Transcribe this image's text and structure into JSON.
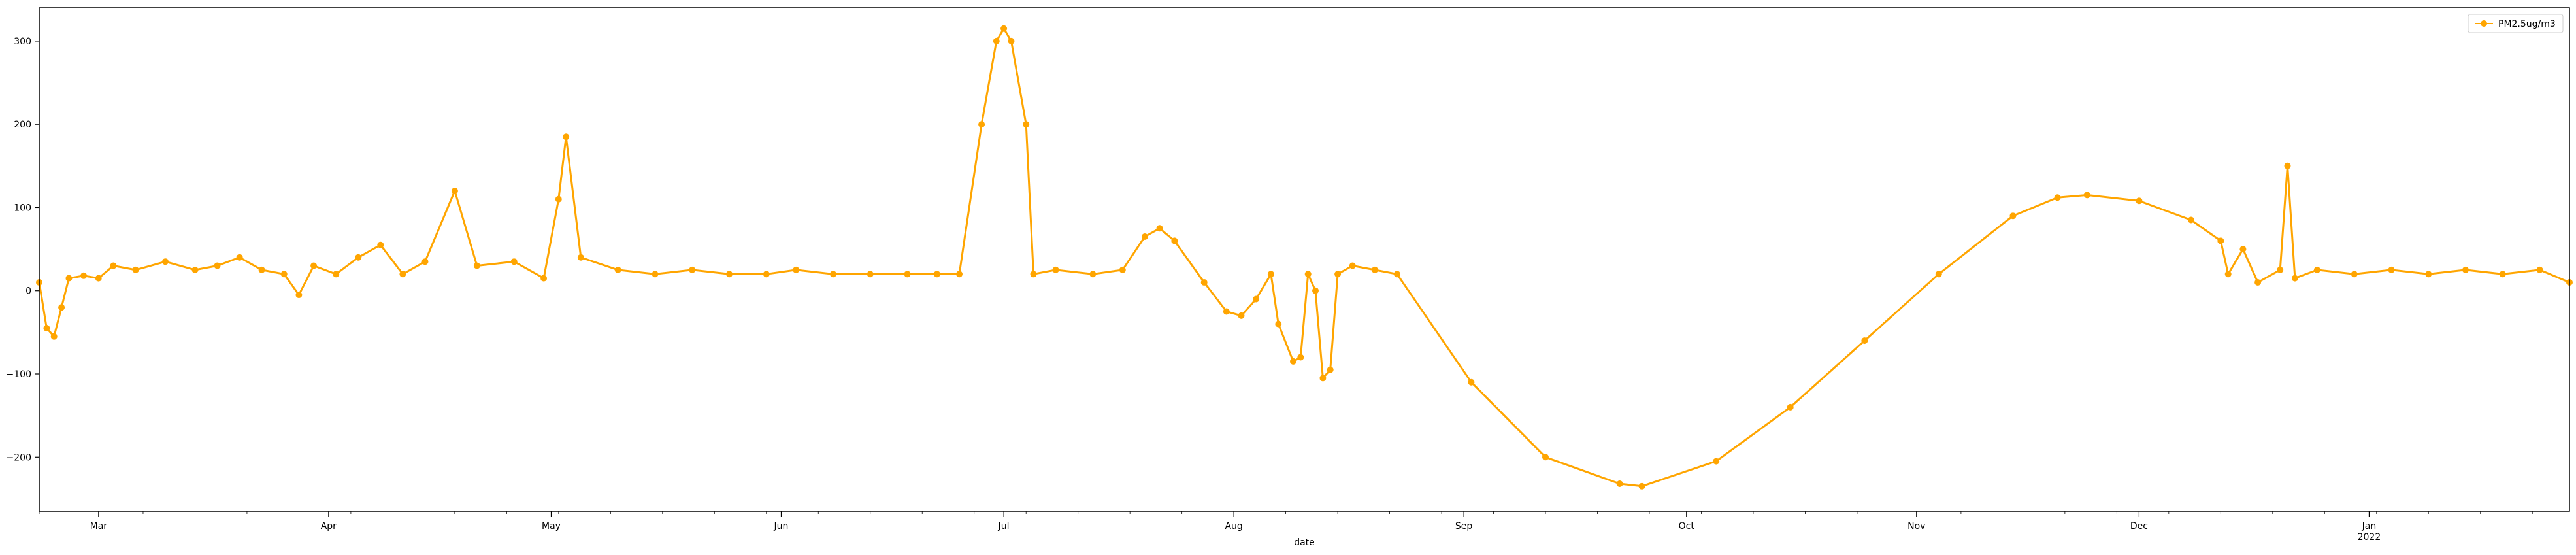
{
  "chart_data": {
    "type": "line",
    "title": "",
    "xlabel": "date",
    "ylabel": "",
    "x_type": "date",
    "xlim": [
      "2021-02-21",
      "2022-01-28"
    ],
    "ylim": [
      -265,
      340
    ],
    "y_ticks": [
      -200,
      -100,
      0,
      100,
      200,
      300
    ],
    "x_ticks": [
      {
        "date": "2021-03-01",
        "label": "Mar",
        "sublabel": ""
      },
      {
        "date": "2021-04-01",
        "label": "Apr",
        "sublabel": ""
      },
      {
        "date": "2021-05-01",
        "label": "May",
        "sublabel": ""
      },
      {
        "date": "2021-06-01",
        "label": "Jun",
        "sublabel": ""
      },
      {
        "date": "2021-07-01",
        "label": "Jul",
        "sublabel": ""
      },
      {
        "date": "2021-08-01",
        "label": "Aug",
        "sublabel": ""
      },
      {
        "date": "2021-09-01",
        "label": "Sep",
        "sublabel": ""
      },
      {
        "date": "2021-10-01",
        "label": "Oct",
        "sublabel": ""
      },
      {
        "date": "2021-11-01",
        "label": "Nov",
        "sublabel": ""
      },
      {
        "date": "2021-12-01",
        "label": "Dec",
        "sublabel": ""
      },
      {
        "date": "2022-01-01",
        "label": "Jan",
        "sublabel": "2022"
      }
    ],
    "grid": false,
    "legend": {
      "position": "top-right"
    },
    "series": [
      {
        "name": "PM2.5ug/m3",
        "color": "#FFA500",
        "marker": "circle",
        "points": [
          [
            "2021-02-21",
            10
          ],
          [
            "2021-02-22",
            -45
          ],
          [
            "2021-02-23",
            -55
          ],
          [
            "2021-02-24",
            -20
          ],
          [
            "2021-02-25",
            15
          ],
          [
            "2021-02-27",
            18
          ],
          [
            "2021-03-01",
            15
          ],
          [
            "2021-03-03",
            30
          ],
          [
            "2021-03-06",
            25
          ],
          [
            "2021-03-10",
            35
          ],
          [
            "2021-03-14",
            25
          ],
          [
            "2021-03-17",
            30
          ],
          [
            "2021-03-20",
            40
          ],
          [
            "2021-03-23",
            25
          ],
          [
            "2021-03-26",
            20
          ],
          [
            "2021-03-28",
            -5
          ],
          [
            "2021-03-30",
            30
          ],
          [
            "2021-04-02",
            20
          ],
          [
            "2021-04-05",
            40
          ],
          [
            "2021-04-08",
            55
          ],
          [
            "2021-04-11",
            20
          ],
          [
            "2021-04-14",
            35
          ],
          [
            "2021-04-18",
            120
          ],
          [
            "2021-04-21",
            30
          ],
          [
            "2021-04-26",
            35
          ],
          [
            "2021-04-30",
            15
          ],
          [
            "2021-05-02",
            110
          ],
          [
            "2021-05-03",
            185
          ],
          [
            "2021-05-05",
            40
          ],
          [
            "2021-05-10",
            25
          ],
          [
            "2021-05-15",
            20
          ],
          [
            "2021-05-20",
            25
          ],
          [
            "2021-05-25",
            20
          ],
          [
            "2021-05-30",
            20
          ],
          [
            "2021-06-03",
            25
          ],
          [
            "2021-06-08",
            20
          ],
          [
            "2021-06-13",
            20
          ],
          [
            "2021-06-18",
            20
          ],
          [
            "2021-06-22",
            20
          ],
          [
            "2021-06-25",
            20
          ],
          [
            "2021-06-28",
            200
          ],
          [
            "2021-06-30",
            300
          ],
          [
            "2021-07-01",
            315
          ],
          [
            "2021-07-02",
            300
          ],
          [
            "2021-07-04",
            200
          ],
          [
            "2021-07-05",
            20
          ],
          [
            "2021-07-08",
            25
          ],
          [
            "2021-07-13",
            20
          ],
          [
            "2021-07-17",
            25
          ],
          [
            "2021-07-20",
            65
          ],
          [
            "2021-07-22",
            75
          ],
          [
            "2021-07-24",
            60
          ],
          [
            "2021-07-28",
            10
          ],
          [
            "2021-07-31",
            -25
          ],
          [
            "2021-08-02",
            -30
          ],
          [
            "2021-08-04",
            -10
          ],
          [
            "2021-08-06",
            20
          ],
          [
            "2021-08-07",
            -40
          ],
          [
            "2021-08-09",
            -85
          ],
          [
            "2021-08-10",
            -80
          ],
          [
            "2021-08-11",
            20
          ],
          [
            "2021-08-12",
            0
          ],
          [
            "2021-08-13",
            -105
          ],
          [
            "2021-08-14",
            -95
          ],
          [
            "2021-08-15",
            20
          ],
          [
            "2021-08-17",
            30
          ],
          [
            "2021-08-20",
            25
          ],
          [
            "2021-08-23",
            20
          ],
          [
            "2021-09-02",
            -110
          ],
          [
            "2021-09-12",
            -200
          ],
          [
            "2021-09-22",
            -232
          ],
          [
            "2021-09-25",
            -235
          ],
          [
            "2021-10-05",
            -205
          ],
          [
            "2021-10-15",
            -140
          ],
          [
            "2021-10-25",
            -60
          ],
          [
            "2021-11-04",
            20
          ],
          [
            "2021-11-14",
            90
          ],
          [
            "2021-11-20",
            112
          ],
          [
            "2021-11-24",
            115
          ],
          [
            "2021-12-01",
            108
          ],
          [
            "2021-12-08",
            85
          ],
          [
            "2021-12-12",
            60
          ],
          [
            "2021-12-13",
            20
          ],
          [
            "2021-12-15",
            50
          ],
          [
            "2021-12-17",
            10
          ],
          [
            "2021-12-20",
            25
          ],
          [
            "2021-12-21",
            150
          ],
          [
            "2021-12-22",
            15
          ],
          [
            "2021-12-25",
            25
          ],
          [
            "2021-12-30",
            20
          ],
          [
            "2022-01-04",
            25
          ],
          [
            "2022-01-09",
            20
          ],
          [
            "2022-01-14",
            25
          ],
          [
            "2022-01-19",
            20
          ],
          [
            "2022-01-24",
            25
          ],
          [
            "2022-01-28",
            10
          ]
        ]
      }
    ]
  }
}
